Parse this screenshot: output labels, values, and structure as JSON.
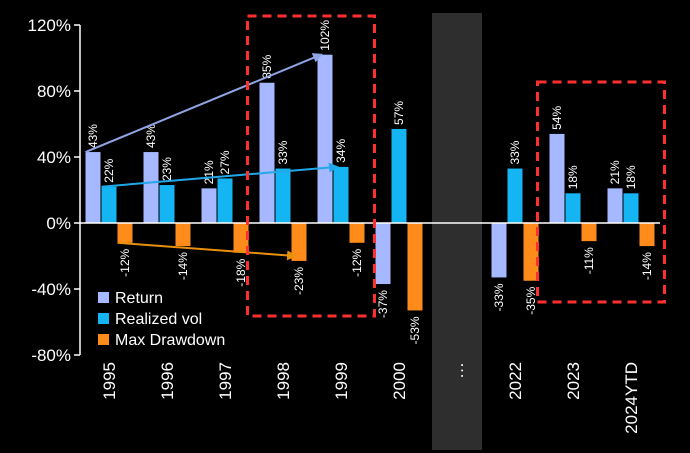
{
  "chart_data": {
    "type": "bar",
    "categories": [
      "1995",
      "1996",
      "1997",
      "1998",
      "1999",
      "2000",
      "…",
      "2022",
      "2023",
      "2024YTD"
    ],
    "series": [
      {
        "name": "Return",
        "color": "#a6b8ff",
        "values": [
          43,
          43,
          21,
          85,
          102,
          -37,
          null,
          -33,
          54,
          21
        ],
        "labels": [
          "43%",
          "43%",
          "21%",
          "85%",
          "102%",
          "-37%",
          "",
          "-33%",
          "54%",
          "21%"
        ]
      },
      {
        "name": "Realized vol",
        "color": "#15b4f2",
        "values": [
          22,
          23,
          27,
          33,
          34,
          57,
          null,
          33,
          18,
          18
        ],
        "labels": [
          "22%",
          "23%",
          "27%",
          "33%",
          "34%",
          "57%",
          "",
          "33%",
          "18%",
          "18%"
        ]
      },
      {
        "name": "Max Drawdown",
        "color": "#ff8c1a",
        "values": [
          -12,
          -14,
          -18,
          -23,
          -12,
          -53,
          null,
          -35,
          -11,
          -14
        ],
        "labels": [
          "-12%",
          "-14%",
          "-18%",
          "-23%",
          "-12%",
          "-53%",
          "",
          "-35%",
          "-11%",
          "-14%"
        ]
      }
    ],
    "ylim": [
      -80,
      120
    ],
    "yticks": [
      -80,
      -40,
      0,
      40,
      80,
      120
    ],
    "ytick_labels": [
      "-80%",
      "-40%",
      "0%",
      "40%",
      "80%",
      "120%"
    ],
    "legend_position": "bottom-left",
    "grid": false,
    "highlight_boxes": [
      {
        "from": "1998",
        "to": "1999"
      },
      {
        "from": "2023",
        "to": "2024YTD"
      }
    ],
    "ellipsis_band_category": "…",
    "arrows": [
      {
        "series": "Return",
        "from": "1995",
        "to": "1999"
      },
      {
        "series": "Realized vol",
        "from": "1995",
        "to": "1999"
      },
      {
        "series": "Max Drawdown",
        "from": "1995",
        "to": "1998"
      }
    ],
    "colors": {
      "background": "#000000",
      "axis": "#ffffff",
      "highlight": "#ff2f2f",
      "band": "#2e2e2e",
      "arrow_return": "#90a4e4",
      "arrow_vol": "#22a8e8",
      "arrow_dd": "#e8900c"
    }
  }
}
